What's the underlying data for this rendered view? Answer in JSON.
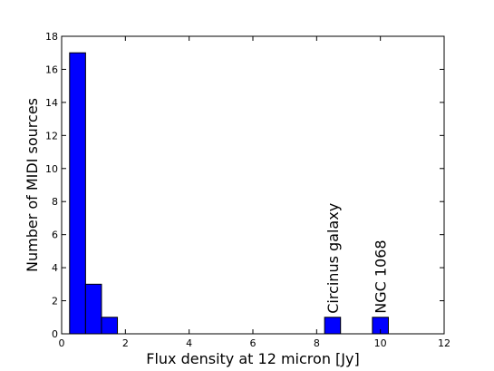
{
  "chart_data": {
    "type": "bar",
    "bins": [
      {
        "x0": 0.25,
        "x1": 0.75,
        "count": 17
      },
      {
        "x0": 0.75,
        "x1": 1.25,
        "count": 3
      },
      {
        "x0": 1.25,
        "x1": 1.75,
        "count": 1
      },
      {
        "x0": 8.25,
        "x1": 8.75,
        "count": 1
      },
      {
        "x0": 9.75,
        "x1": 10.25,
        "count": 1
      }
    ],
    "xlabel": "Flux density at 12 micron [Jy]",
    "ylabel": "Number of MIDI sources",
    "xlim": [
      0,
      12
    ],
    "ylim": [
      0,
      18
    ],
    "xticks": [
      0,
      2,
      4,
      6,
      8,
      10,
      12
    ],
    "yticks": [
      0,
      2,
      4,
      6,
      8,
      10,
      12,
      14,
      16,
      18
    ],
    "grid": false,
    "bar_color": "#0000ff",
    "annotations": [
      {
        "text": "Circinus galaxy",
        "x": 8.5,
        "y": 1
      },
      {
        "text": "NGC 1068",
        "x": 10.0,
        "y": 1
      }
    ]
  }
}
